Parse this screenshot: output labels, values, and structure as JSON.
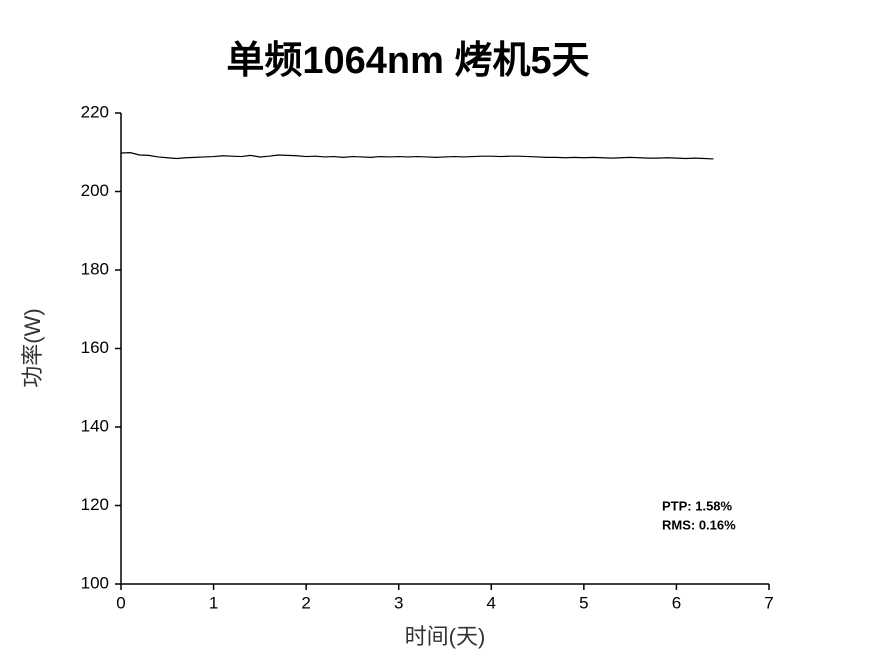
{
  "chart_data": {
    "type": "line",
    "title": "单频1064nm 烤机5天",
    "x_label": "时间(天)",
    "y_label": "功率(W)",
    "annotations": [
      "PTP: 1.58%",
      "RMS: 0.16%"
    ],
    "xlim": [
      0,
      7
    ],
    "xticks": [
      0,
      1,
      2,
      3,
      4,
      5,
      6,
      7
    ],
    "ylim": [
      100,
      220
    ],
    "yticks": [
      100,
      120,
      140,
      160,
      180,
      200,
      220
    ],
    "grid": false,
    "series": [
      {
        "name": "功率",
        "color": "#000000",
        "x": [
          0.0,
          0.1,
          0.2,
          0.3,
          0.4,
          0.5,
          0.6,
          0.7,
          0.8,
          0.9,
          1.0,
          1.1,
          1.2,
          1.3,
          1.4,
          1.5,
          1.6,
          1.7,
          1.8,
          1.9,
          2.0,
          2.1,
          2.2,
          2.3,
          2.4,
          2.5,
          2.6,
          2.7,
          2.8,
          2.9,
          3.0,
          3.1,
          3.2,
          3.3,
          3.4,
          3.5,
          3.6,
          3.7,
          3.8,
          3.9,
          4.0,
          4.1,
          4.2,
          4.3,
          4.4,
          4.5,
          4.6,
          4.7,
          4.8,
          4.9,
          5.0,
          5.1,
          5.2,
          5.3,
          5.4,
          5.5,
          5.6,
          5.7,
          5.8,
          5.9,
          6.0,
          6.1,
          6.2,
          6.3,
          6.4
        ],
        "values": [
          209.8,
          209.9,
          209.3,
          209.2,
          208.8,
          208.6,
          208.4,
          208.6,
          208.7,
          208.8,
          208.9,
          209.1,
          209.0,
          208.9,
          209.2,
          208.8,
          209.0,
          209.3,
          209.2,
          209.1,
          208.9,
          209.0,
          208.8,
          208.9,
          208.7,
          208.9,
          208.8,
          208.7,
          208.9,
          208.8,
          208.9,
          208.8,
          208.9,
          208.8,
          208.7,
          208.8,
          208.9,
          208.8,
          208.9,
          209.0,
          209.0,
          208.9,
          209.0,
          209.0,
          208.9,
          208.8,
          208.7,
          208.7,
          208.6,
          208.7,
          208.6,
          208.7,
          208.6,
          208.5,
          208.6,
          208.7,
          208.6,
          208.5,
          208.5,
          208.6,
          208.5,
          208.4,
          208.5,
          208.4,
          208.3
        ]
      }
    ]
  }
}
